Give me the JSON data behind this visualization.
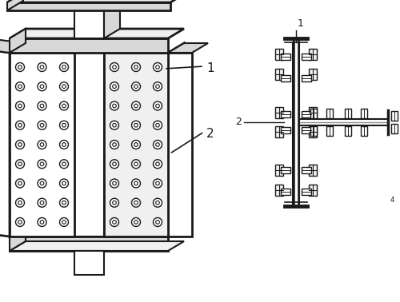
{
  "bg_color": "#ffffff",
  "dk": "#1a1a1a",
  "white": "#ffffff",
  "light_gray": "#f0f0f0",
  "med_gray": "#d8d8d8",
  "dark_gray": "#a8a8a8"
}
